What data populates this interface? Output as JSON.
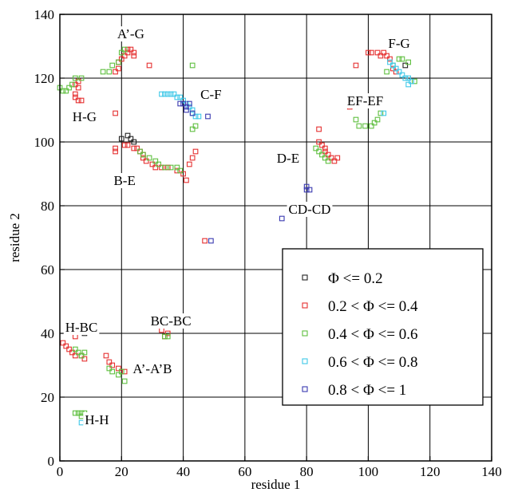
{
  "chart_data": {
    "type": "scatter",
    "xlabel": "residue 1",
    "ylabel": "residue 2",
    "xlim": [
      0,
      140
    ],
    "ylim": [
      0,
      140
    ],
    "xticks": [
      0,
      20,
      40,
      60,
      80,
      100,
      120,
      140
    ],
    "yticks": [
      0,
      20,
      40,
      60,
      80,
      100,
      120,
      140
    ],
    "grid": true,
    "legend_position": "lower-right",
    "marker": "open-square",
    "series": [
      {
        "name": "Φ <= 0.2",
        "color": "#222222",
        "points": [
          [
            20,
            101
          ],
          [
            22,
            102
          ],
          [
            23,
            101
          ],
          [
            24,
            100
          ],
          [
            112,
            124
          ],
          [
            8,
            40
          ]
        ]
      },
      {
        "name": "0.2 < Φ <= 0.4",
        "color": "#e53030",
        "points": [
          [
            18,
            122
          ],
          [
            19,
            123
          ],
          [
            19,
            125
          ],
          [
            20,
            126
          ],
          [
            21,
            127
          ],
          [
            22,
            128
          ],
          [
            22,
            129
          ],
          [
            23,
            129
          ],
          [
            24,
            128
          ],
          [
            24,
            127
          ],
          [
            29,
            124
          ],
          [
            5,
            118
          ],
          [
            6,
            119
          ],
          [
            6,
            117
          ],
          [
            5,
            115
          ],
          [
            5,
            114
          ],
          [
            6,
            113
          ],
          [
            7,
            113
          ],
          [
            18,
            109
          ],
          [
            18,
            97
          ],
          [
            18,
            98
          ],
          [
            21,
            99
          ],
          [
            22,
            99
          ],
          [
            24,
            98
          ],
          [
            25,
            98
          ],
          [
            26,
            97
          ],
          [
            27,
            96
          ],
          [
            27,
            95
          ],
          [
            28,
            94
          ],
          [
            30,
            93
          ],
          [
            31,
            92
          ],
          [
            33,
            92
          ],
          [
            35,
            92
          ],
          [
            38,
            91
          ],
          [
            40,
            90
          ],
          [
            41,
            88
          ],
          [
            42,
            93
          ],
          [
            43,
            95
          ],
          [
            44,
            97
          ],
          [
            84,
            104
          ],
          [
            84,
            100
          ],
          [
            85,
            99
          ],
          [
            86,
            98
          ],
          [
            86,
            97
          ],
          [
            87,
            96
          ],
          [
            88,
            95
          ],
          [
            89,
            94
          ],
          [
            90,
            95
          ],
          [
            94,
            111
          ],
          [
            96,
            124
          ],
          [
            100,
            128
          ],
          [
            101,
            128
          ],
          [
            103,
            128
          ],
          [
            104,
            127
          ],
          [
            105,
            128
          ],
          [
            106,
            127
          ],
          [
            107,
            126
          ],
          [
            108,
            123
          ],
          [
            109,
            122
          ],
          [
            47,
            69
          ],
          [
            1,
            37
          ],
          [
            2,
            36
          ],
          [
            3,
            35
          ],
          [
            4,
            34
          ],
          [
            5,
            33
          ],
          [
            5,
            39
          ],
          [
            7,
            33
          ],
          [
            8,
            32
          ],
          [
            15,
            33
          ],
          [
            16,
            31
          ],
          [
            17,
            30
          ],
          [
            19,
            29
          ],
          [
            21,
            28
          ],
          [
            33,
            41
          ],
          [
            34,
            39
          ],
          [
            35,
            40
          ]
        ]
      },
      {
        "name": "0.4 < Φ <= 0.6",
        "color": "#5fbf3f",
        "points": [
          [
            0,
            117
          ],
          [
            1,
            116
          ],
          [
            2,
            116
          ],
          [
            3,
            117
          ],
          [
            4,
            118
          ],
          [
            5,
            120
          ],
          [
            7,
            120
          ],
          [
            14,
            122
          ],
          [
            16,
            122
          ],
          [
            17,
            124
          ],
          [
            19,
            125
          ],
          [
            20,
            128
          ],
          [
            21,
            129
          ],
          [
            43,
            124
          ],
          [
            26,
            97
          ],
          [
            27,
            96
          ],
          [
            29,
            95
          ],
          [
            31,
            94
          ],
          [
            32,
            93
          ],
          [
            34,
            92
          ],
          [
            36,
            92
          ],
          [
            38,
            92
          ],
          [
            39,
            91
          ],
          [
            43,
            104
          ],
          [
            44,
            105
          ],
          [
            83,
            98
          ],
          [
            84,
            97
          ],
          [
            85,
            96
          ],
          [
            86,
            95
          ],
          [
            87,
            94
          ],
          [
            96,
            107
          ],
          [
            97,
            105
          ],
          [
            99,
            105
          ],
          [
            101,
            105
          ],
          [
            102,
            106
          ],
          [
            103,
            107
          ],
          [
            104,
            109
          ],
          [
            106,
            122
          ],
          [
            108,
            124
          ],
          [
            110,
            126
          ],
          [
            111,
            126
          ],
          [
            113,
            125
          ],
          [
            115,
            119
          ],
          [
            5,
            35
          ],
          [
            6,
            34
          ],
          [
            7,
            33
          ],
          [
            8,
            34
          ],
          [
            16,
            29
          ],
          [
            17,
            28
          ],
          [
            19,
            27
          ],
          [
            20,
            28
          ],
          [
            21,
            25
          ],
          [
            30,
            43
          ],
          [
            31,
            43
          ],
          [
            34,
            39
          ],
          [
            35,
            39
          ],
          [
            5,
            15
          ],
          [
            6,
            15
          ],
          [
            7,
            15
          ],
          [
            7,
            14
          ],
          [
            8,
            15
          ]
        ]
      },
      {
        "name": "0.6 < Φ <= 0.8",
        "color": "#3fc8e8",
        "points": [
          [
            33,
            115
          ],
          [
            34,
            115
          ],
          [
            35,
            115
          ],
          [
            36,
            115
          ],
          [
            37,
            115
          ],
          [
            38,
            114
          ],
          [
            39,
            114
          ],
          [
            40,
            113
          ],
          [
            41,
            112
          ],
          [
            42,
            111
          ],
          [
            43,
            110
          ],
          [
            43,
            109
          ],
          [
            44,
            108
          ],
          [
            45,
            108
          ],
          [
            107,
            125
          ],
          [
            108,
            124
          ],
          [
            109,
            123
          ],
          [
            110,
            122
          ],
          [
            111,
            121
          ],
          [
            112,
            120
          ],
          [
            113,
            120
          ],
          [
            113,
            118
          ],
          [
            114,
            119
          ],
          [
            105,
            109
          ],
          [
            7,
            12
          ]
        ]
      },
      {
        "name": "0.8 < Φ <= 1",
        "color": "#3a3ab0",
        "points": [
          [
            39,
            112
          ],
          [
            40,
            112
          ],
          [
            41,
            111
          ],
          [
            42,
            112
          ],
          [
            41,
            110
          ],
          [
            43,
            109
          ],
          [
            48,
            108
          ],
          [
            80,
            85
          ],
          [
            81,
            85
          ],
          [
            80,
            86
          ],
          [
            72,
            76
          ],
          [
            49,
            69
          ]
        ]
      }
    ],
    "annotations": [
      {
        "text": "A’-G",
        "x": 23,
        "y": 134
      },
      {
        "text": "H-G",
        "x": 8,
        "y": 108
      },
      {
        "text": "C-F",
        "x": 49,
        "y": 115
      },
      {
        "text": "F-G",
        "x": 110,
        "y": 131
      },
      {
        "text": "EF-EF",
        "x": 99,
        "y": 113
      },
      {
        "text": "D-E",
        "x": 74,
        "y": 95
      },
      {
        "text": "B-E",
        "x": 21,
        "y": 88
      },
      {
        "text": "CD-CD",
        "x": 81,
        "y": 79
      },
      {
        "text": "H-BC",
        "x": 7,
        "y": 42
      },
      {
        "text": "BC-BC",
        "x": 36,
        "y": 44
      },
      {
        "text": "A’-A’B",
        "x": 30,
        "y": 29
      },
      {
        "text": "H-H",
        "x": 12,
        "y": 13
      }
    ]
  }
}
